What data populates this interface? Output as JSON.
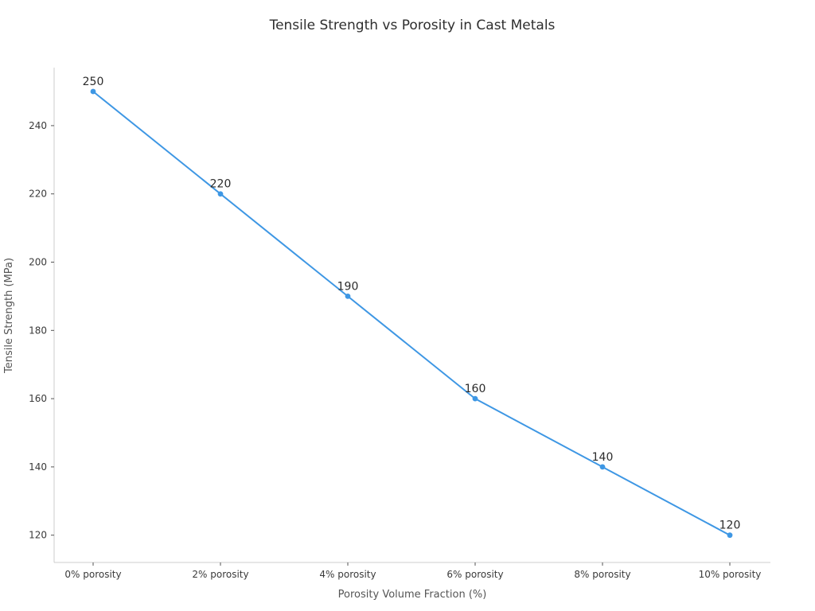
{
  "page": {
    "background": "#ffffff"
  },
  "chart_data": {
    "type": "line",
    "title": "Tensile Strength vs Porosity in Cast Metals",
    "xlabel": "Porosity Volume Fraction (%)",
    "ylabel": "Tensile Strength (MPa)",
    "categories": [
      "0% porosity",
      "2% porosity",
      "4% porosity",
      "6% porosity",
      "8% porosity",
      "10% porosity"
    ],
    "values": [
      250,
      220,
      190,
      160,
      140,
      120
    ],
    "point_labels": [
      "250",
      "220",
      "190",
      "160",
      "140",
      "120"
    ],
    "yticks": [
      120,
      140,
      160,
      180,
      200,
      220,
      240
    ],
    "ylim": [
      112,
      257
    ],
    "grid": false,
    "legend": "none",
    "marker": "circle",
    "line_color": "#3e97e4",
    "spine_color": "#cccccc",
    "tick_mark_color": "#555555",
    "tick_label_color": "#3a3a3a",
    "axis_label_color": "#555555",
    "title_color": "#2e2e2e",
    "annotation_color": "#2b2b2b"
  }
}
